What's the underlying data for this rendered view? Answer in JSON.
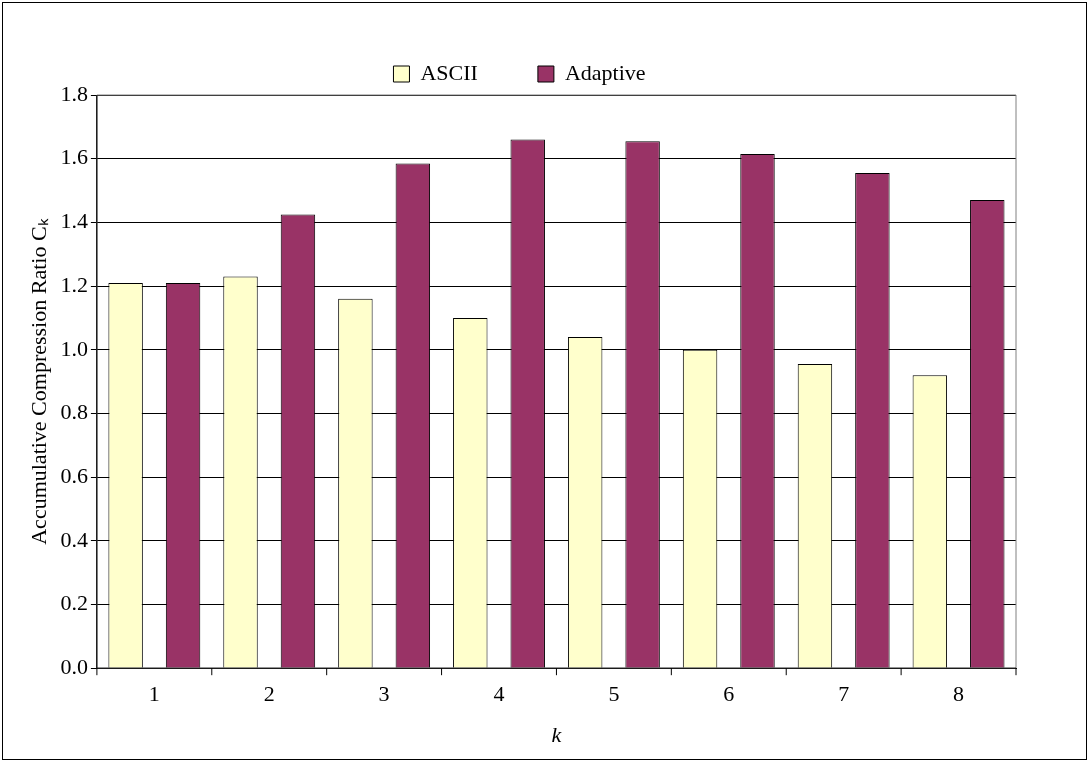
{
  "chart_data": {
    "type": "bar",
    "xlabel": "k",
    "ylabel": "Accumulative Compression Ratio Cₖ",
    "categories": [
      "1",
      "2",
      "3",
      "4",
      "5",
      "6",
      "7",
      "8"
    ],
    "series": [
      {
        "name": "ASCII",
        "color": "#ffffcc",
        "values": [
          1.21,
          1.23,
          1.16,
          1.1,
          1.04,
          1.0,
          0.955,
          0.92
        ]
      },
      {
        "name": "Adaptive",
        "color": "#993366",
        "values": [
          1.21,
          1.425,
          1.585,
          1.66,
          1.655,
          1.615,
          1.555,
          1.47
        ]
      }
    ],
    "ylim": [
      0,
      1.8
    ],
    "yticks": [
      {
        "value": 0,
        "label": "0.0"
      },
      0.2,
      0.4,
      0.6,
      0.8,
      {
        "value": 1,
        "label": "1.0"
      },
      1.2,
      1.4,
      1.6,
      1.8
    ],
    "grid": "y",
    "legend": "top"
  }
}
